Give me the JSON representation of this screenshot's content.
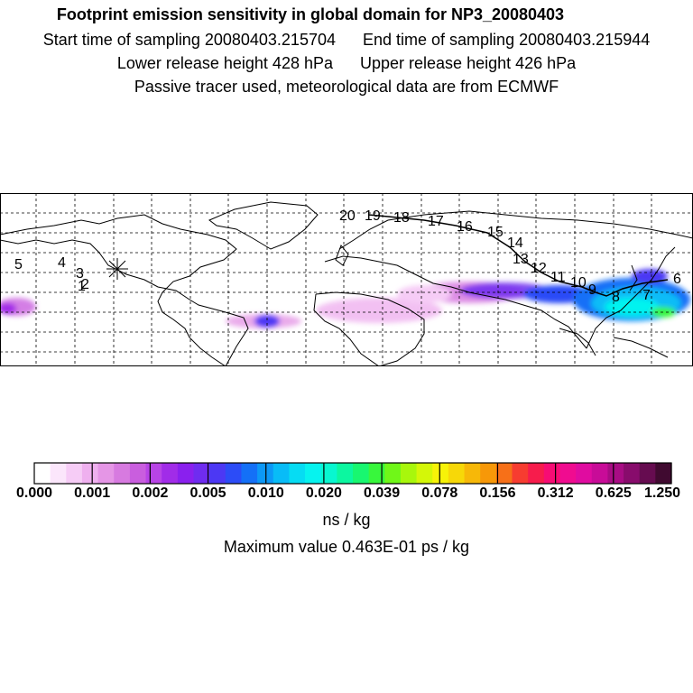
{
  "header": {
    "title": "Footprint emission sensitivity in global domain for NP3_20080403",
    "start_label": "Start time of sampling 20080403.215704",
    "end_label": "End time of sampling 20080403.215944",
    "lower_label": "Lower release height  428 hPa",
    "upper_label": "Upper release height  426 hPa",
    "info": "Passive tracer used, meteorological data are from ECMWF"
  },
  "map": {
    "track_labels": [
      "1",
      "2",
      "3",
      "4",
      "5",
      "6",
      "7",
      "8",
      "9",
      "10",
      "11",
      "12",
      "13",
      "14",
      "15",
      "16",
      "17",
      "18",
      "19",
      "20"
    ]
  },
  "colorbar": {
    "colors": [
      "#ffffff",
      "#fbe6fb",
      "#f6ccf6",
      "#efb0ef",
      "#e596e6",
      "#d77ae0",
      "#c95ede",
      "#b844e6",
      "#a12ce8",
      "#8a20ee",
      "#6f2cf0",
      "#4c38f4",
      "#2c4cf7",
      "#1470f7",
      "#0c98f7",
      "#08bcf7",
      "#06dcf3",
      "#06f3ef",
      "#08f7d0",
      "#0cf7a0",
      "#18f770",
      "#38f73c",
      "#70f718",
      "#a8f70c",
      "#d4f708",
      "#f7f308",
      "#f7d808",
      "#f7b808",
      "#f79808",
      "#f77018",
      "#f73c30",
      "#f71c4c",
      "#f70c74",
      "#f00c90",
      "#e00ca0",
      "#c80c98",
      "#a80c84",
      "#880c6c",
      "#660c50",
      "#400a30"
    ],
    "ticks": [
      "0.000",
      "0.001",
      "0.002",
      "0.005",
      "0.010",
      "0.020",
      "0.039",
      "0.078",
      "0.156",
      "0.312",
      "0.625",
      "1.250"
    ],
    "units": "ns / kg",
    "max_value": "Maximum value  0.463E-01 ps / kg"
  }
}
